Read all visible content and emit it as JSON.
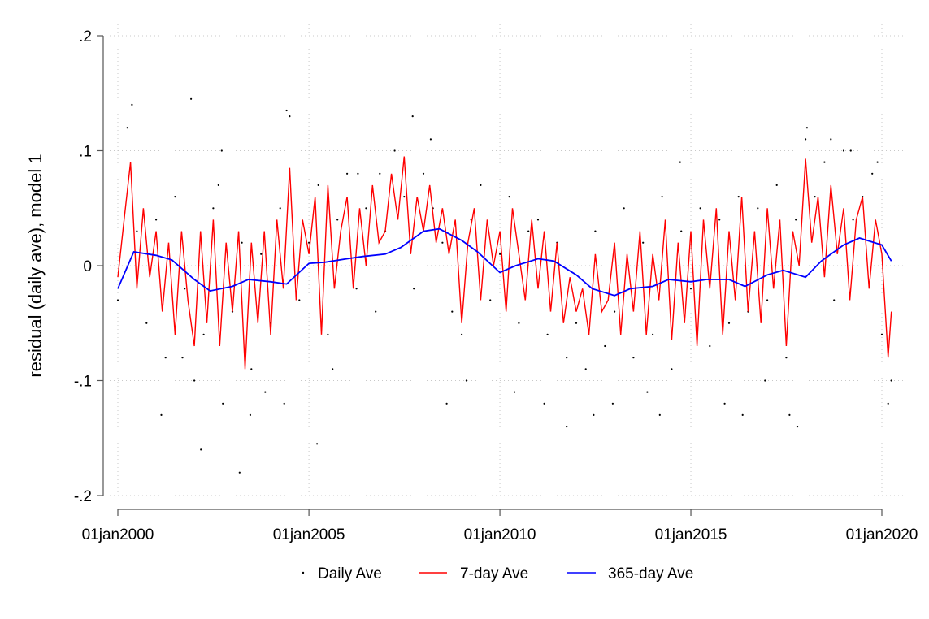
{
  "chart_data": {
    "type": "line",
    "title": "",
    "ylabel": "residual (daily ave), model 1",
    "xlabel": "",
    "xlim": [
      "2000-01-01",
      "2020-01-01"
    ],
    "ylim": [
      -0.2,
      0.2
    ],
    "x_ticks": [
      {
        "value": "2000-01-01",
        "label": "01jan2000"
      },
      {
        "value": "2005-01-01",
        "label": "01jan2005"
      },
      {
        "value": "2010-01-01",
        "label": "01jan2010"
      },
      {
        "value": "2015-01-01",
        "label": "01jan2015"
      },
      {
        "value": "2020-01-01",
        "label": "01jan2020"
      }
    ],
    "y_ticks": [
      {
        "value": 0.2,
        "label": ".2"
      },
      {
        "value": 0.1,
        "label": ".1"
      },
      {
        "value": 0,
        "label": "0"
      },
      {
        "value": -0.1,
        "label": "-.1"
      },
      {
        "value": -0.2,
        "label": "-.2"
      }
    ],
    "grid": true,
    "legend_position": "bottom",
    "series": [
      {
        "name": "Daily Ave",
        "style": "scatter",
        "color": "#000000",
        "x": [
          "2000-01-01",
          "2000-04-01",
          "2000-07-01",
          "2000-10-01",
          "2001-01-01",
          "2001-04-01",
          "2001-07-01",
          "2001-10-01",
          "2002-01-01",
          "2002-04-01",
          "2002-07-01",
          "2002-10-01",
          "2003-01-01",
          "2003-04-01",
          "2003-07-01",
          "2003-10-01",
          "2004-01-01",
          "2004-04-01",
          "2004-07-01",
          "2004-10-01",
          "2005-01-01",
          "2005-04-01",
          "2005-07-01",
          "2005-10-01",
          "2006-01-01",
          "2006-04-01",
          "2006-07-01",
          "2006-10-01",
          "2007-01-01",
          "2007-04-01",
          "2007-07-01",
          "2007-10-01",
          "2008-01-01",
          "2008-04-01",
          "2008-07-01",
          "2008-10-01",
          "2009-01-01",
          "2009-04-01",
          "2009-07-01",
          "2009-10-01",
          "2010-01-01",
          "2010-04-01",
          "2010-07-01",
          "2010-10-01",
          "2011-01-01",
          "2011-04-01",
          "2011-07-01",
          "2011-10-01",
          "2012-01-01",
          "2012-04-01",
          "2012-07-01",
          "2012-10-01",
          "2013-01-01",
          "2013-04-01",
          "2013-07-01",
          "2013-10-01",
          "2014-01-01",
          "2014-04-01",
          "2014-07-01",
          "2014-10-01",
          "2015-01-01",
          "2015-04-01",
          "2015-07-01",
          "2015-10-01",
          "2016-01-01",
          "2016-04-01",
          "2016-07-01",
          "2016-10-01",
          "2017-01-01",
          "2017-04-01",
          "2017-07-01",
          "2017-10-01",
          "2018-01-01",
          "2018-04-01",
          "2018-07-01",
          "2018-10-01",
          "2019-01-01",
          "2019-04-01",
          "2019-07-01",
          "2019-10-01",
          "2020-01-01",
          "2020-04-01",
          "2000-05-15",
          "2001-02-20",
          "2001-09-10",
          "2002-03-05",
          "2002-08-20",
          "2003-03-10",
          "2003-06-20",
          "2004-05-10",
          "2004-06-01",
          "2005-08-15",
          "2006-11-10",
          "2007-09-20",
          "2008-03-10",
          "2009-02-15",
          "2011-03-01",
          "2012-06-15",
          "2013-11-10",
          "2014-09-20",
          "2016-05-10",
          "2017-10-15",
          "2018-01-15",
          "2018-09-01",
          "2019-03-10",
          "2019-11-20",
          "2020-03-01",
          "2001-12-01",
          "2002-09-20",
          "2003-11-10",
          "2005-03-20",
          "2006-04-15",
          "2008-08-10",
          "2010-05-20",
          "2011-10-01",
          "2012-12-15",
          "2014-03-10",
          "2015-11-20",
          "2016-12-10",
          "2017-08-01"
        ],
        "values": [
          -0.03,
          0.12,
          0.03,
          -0.05,
          0.04,
          -0.08,
          0.06,
          -0.02,
          -0.1,
          -0.06,
          0.05,
          -0.12,
          -0.04,
          0.02,
          -0.09,
          0.01,
          -0.05,
          0.05,
          0.13,
          -0.03,
          0.02,
          0.07,
          -0.06,
          0.04,
          0.08,
          -0.02,
          0.05,
          -0.04,
          0.03,
          0.1,
          0.06,
          -0.02,
          0.08,
          0.05,
          0.02,
          -0.04,
          -0.06,
          0.04,
          0.07,
          -0.03,
          0.01,
          0.06,
          -0.05,
          0.03,
          0.04,
          -0.06,
          0.02,
          -0.08,
          -0.05,
          -0.09,
          0.03,
          -0.07,
          -0.04,
          0.05,
          -0.08,
          0.02,
          -0.06,
          0.06,
          -0.09,
          0.03,
          -0.02,
          0.05,
          -0.07,
          0.04,
          -0.05,
          0.06,
          -0.04,
          0.05,
          -0.03,
          0.07,
          -0.08,
          0.04,
          0.11,
          0.06,
          0.09,
          -0.03,
          0.1,
          0.04,
          0.06,
          0.08,
          -0.06,
          -0.1,
          0.14,
          -0.13,
          -0.08,
          -0.16,
          0.07,
          -0.18,
          -0.13,
          -0.12,
          0.135,
          -0.09,
          0.08,
          0.13,
          0.11,
          -0.1,
          -0.12,
          -0.13,
          -0.11,
          0.09,
          -0.13,
          -0.14,
          0.12,
          0.11,
          0.1,
          0.09,
          -0.12,
          0.145,
          0.1,
          -0.11,
          -0.155,
          0.08,
          -0.12,
          -0.11,
          -0.14,
          -0.12,
          -0.13,
          -0.12,
          -0.1,
          -0.13
        ]
      },
      {
        "name": "7-day Ave",
        "style": "line",
        "color": "#ff0000",
        "x": [
          "2000-01-01",
          "2000-03-01",
          "2000-05-01",
          "2000-07-01",
          "2000-09-01",
          "2000-11-01",
          "2001-01-01",
          "2001-03-01",
          "2001-05-01",
          "2001-07-01",
          "2001-09-01",
          "2001-11-01",
          "2002-01-01",
          "2002-03-01",
          "2002-05-01",
          "2002-07-01",
          "2002-09-01",
          "2002-11-01",
          "2003-01-01",
          "2003-03-01",
          "2003-05-01",
          "2003-07-01",
          "2003-09-01",
          "2003-11-01",
          "2004-01-01",
          "2004-03-01",
          "2004-05-01",
          "2004-07-01",
          "2004-09-01",
          "2004-11-01",
          "2005-01-01",
          "2005-03-01",
          "2005-05-01",
          "2005-07-01",
          "2005-09-01",
          "2005-11-01",
          "2006-01-01",
          "2006-03-01",
          "2006-05-01",
          "2006-07-01",
          "2006-09-01",
          "2006-11-01",
          "2007-01-01",
          "2007-03-01",
          "2007-05-01",
          "2007-07-01",
          "2007-09-01",
          "2007-11-01",
          "2008-01-01",
          "2008-03-01",
          "2008-05-01",
          "2008-07-01",
          "2008-09-01",
          "2008-11-01",
          "2009-01-01",
          "2009-03-01",
          "2009-05-01",
          "2009-07-01",
          "2009-09-01",
          "2009-11-01",
          "2010-01-01",
          "2010-03-01",
          "2010-05-01",
          "2010-07-01",
          "2010-09-01",
          "2010-11-01",
          "2011-01-01",
          "2011-03-01",
          "2011-05-01",
          "2011-07-01",
          "2011-09-01",
          "2011-11-01",
          "2012-01-01",
          "2012-03-01",
          "2012-05-01",
          "2012-07-01",
          "2012-09-01",
          "2012-11-01",
          "2013-01-01",
          "2013-03-01",
          "2013-05-01",
          "2013-07-01",
          "2013-09-01",
          "2013-11-01",
          "2014-01-01",
          "2014-03-01",
          "2014-05-01",
          "2014-07-01",
          "2014-09-01",
          "2014-11-01",
          "2015-01-01",
          "2015-03-01",
          "2015-05-01",
          "2015-07-01",
          "2015-09-01",
          "2015-11-01",
          "2016-01-01",
          "2016-03-01",
          "2016-05-01",
          "2016-07-01",
          "2016-09-01",
          "2016-11-01",
          "2017-01-01",
          "2017-03-01",
          "2017-05-01",
          "2017-07-01",
          "2017-09-01",
          "2017-11-01",
          "2018-01-01",
          "2018-03-01",
          "2018-05-01",
          "2018-07-01",
          "2018-09-01",
          "2018-11-01",
          "2019-01-01",
          "2019-03-01",
          "2019-05-01",
          "2019-07-01",
          "2019-09-01",
          "2019-11-01",
          "2020-01-01",
          "2020-03-01",
          "2020-04-01"
        ],
        "values": [
          -0.01,
          0.04,
          0.09,
          -0.02,
          0.05,
          -0.01,
          0.03,
          -0.04,
          0.02,
          -0.06,
          0.03,
          -0.03,
          -0.07,
          0.03,
          -0.05,
          0.04,
          -0.07,
          0.02,
          -0.04,
          0.03,
          -0.09,
          0.02,
          -0.05,
          0.03,
          -0.06,
          0.04,
          -0.02,
          0.085,
          -0.03,
          0.04,
          0.01,
          0.06,
          -0.06,
          0.07,
          -0.02,
          0.03,
          0.06,
          -0.02,
          0.05,
          0.0,
          0.07,
          0.02,
          0.03,
          0.08,
          0.04,
          0.095,
          0.01,
          0.06,
          0.03,
          0.07,
          0.02,
          0.05,
          0.01,
          0.04,
          -0.05,
          0.02,
          0.05,
          -0.03,
          0.04,
          0.0,
          0.03,
          -0.04,
          0.05,
          0.01,
          -0.03,
          0.04,
          -0.02,
          0.03,
          -0.04,
          0.02,
          -0.05,
          -0.01,
          -0.04,
          -0.02,
          -0.06,
          0.01,
          -0.04,
          -0.03,
          0.02,
          -0.06,
          0.01,
          -0.04,
          0.03,
          -0.06,
          0.01,
          -0.03,
          0.04,
          -0.065,
          0.02,
          -0.05,
          0.03,
          -0.07,
          0.04,
          -0.02,
          0.05,
          -0.06,
          0.03,
          -0.03,
          0.06,
          -0.04,
          0.03,
          -0.05,
          0.05,
          -0.02,
          0.04,
          -0.07,
          0.03,
          0.0,
          0.093,
          0.02,
          0.06,
          -0.01,
          0.07,
          0.01,
          0.05,
          -0.03,
          0.04,
          0.06,
          -0.02,
          0.04,
          0.01,
          -0.08,
          -0.04
        ]
      },
      {
        "name": "365-day Ave",
        "style": "line",
        "color": "#0000ff",
        "x": [
          "2000-01-01",
          "2000-06-01",
          "2001-01-01",
          "2001-06-01",
          "2002-01-01",
          "2002-06-01",
          "2003-01-01",
          "2003-06-01",
          "2004-01-01",
          "2004-06-01",
          "2005-01-01",
          "2005-06-01",
          "2006-01-01",
          "2006-06-01",
          "2007-01-01",
          "2007-06-01",
          "2008-01-01",
          "2008-06-01",
          "2009-01-01",
          "2009-06-01",
          "2010-01-01",
          "2010-06-01",
          "2011-01-01",
          "2011-06-01",
          "2012-01-01",
          "2012-06-01",
          "2013-01-01",
          "2013-06-01",
          "2014-01-01",
          "2014-06-01",
          "2015-01-01",
          "2015-06-01",
          "2016-01-01",
          "2016-06-01",
          "2017-01-01",
          "2017-06-01",
          "2018-01-01",
          "2018-06-01",
          "2019-01-01",
          "2019-06-01",
          "2020-01-01",
          "2020-04-01"
        ],
        "values": [
          -0.02,
          0.012,
          0.009,
          0.005,
          -0.012,
          -0.022,
          -0.018,
          -0.012,
          -0.014,
          -0.016,
          0.002,
          0.003,
          0.006,
          0.008,
          0.01,
          0.016,
          0.03,
          0.032,
          0.022,
          0.012,
          -0.006,
          0.0,
          0.006,
          0.004,
          -0.008,
          -0.02,
          -0.026,
          -0.02,
          -0.018,
          -0.012,
          -0.014,
          -0.012,
          -0.012,
          -0.018,
          -0.008,
          -0.004,
          -0.01,
          0.004,
          0.018,
          0.024,
          0.018,
          0.004
        ]
      }
    ]
  }
}
